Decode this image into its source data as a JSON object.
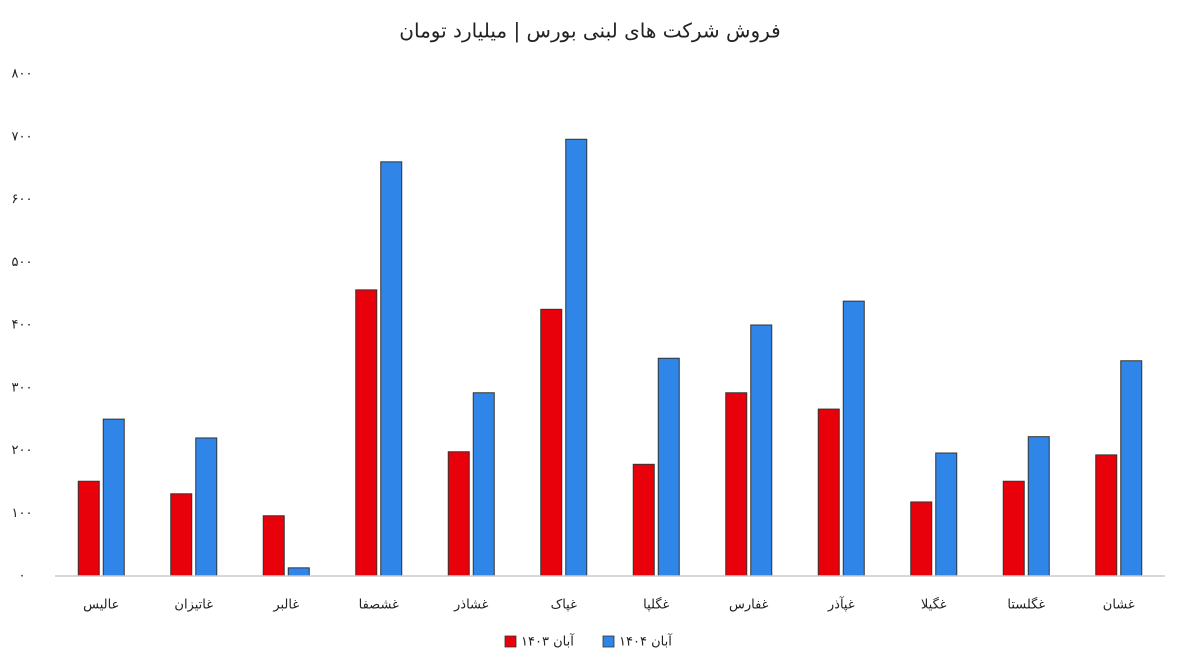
{
  "chart_data": {
    "type": "bar",
    "title": "فروش شرکت های لبنی بورس | میلیارد تومان",
    "categories": [
      "عالیس",
      "غاتیزان",
      "غالبر",
      "غشصفا",
      "غشاذر",
      "غپاک",
      "غگلپا",
      "غفارس",
      "غپآذر",
      "غگیلا",
      "غگلستا",
      "غشان"
    ],
    "series": [
      {
        "name": "آبان ۱۴۰۳",
        "color": "#e8000b",
        "values": [
          151,
          131,
          96,
          456,
          198,
          425,
          178,
          292,
          266,
          118,
          151,
          193
        ]
      },
      {
        "name": "آبان ۱۴۰۴",
        "color": "#2f86e8",
        "values": [
          250,
          220,
          13,
          660,
          292,
          696,
          347,
          400,
          438,
          196,
          222,
          343
        ]
      }
    ],
    "ylim": [
      0,
      800
    ],
    "yticks": [
      {
        "value": 0,
        "label": "۰"
      },
      {
        "value": 100,
        "label": "۱۰۰"
      },
      {
        "value": 200,
        "label": "۲۰۰"
      },
      {
        "value": 300,
        "label": "۳۰۰"
      },
      {
        "value": 400,
        "label": "۴۰۰"
      },
      {
        "value": 500,
        "label": "۵۰۰"
      },
      {
        "value": 600,
        "label": "۶۰۰"
      },
      {
        "value": 700,
        "label": "۷۰۰"
      },
      {
        "value": 800,
        "label": "۸۰۰"
      }
    ],
    "grid": false,
    "legend": "bottom"
  }
}
